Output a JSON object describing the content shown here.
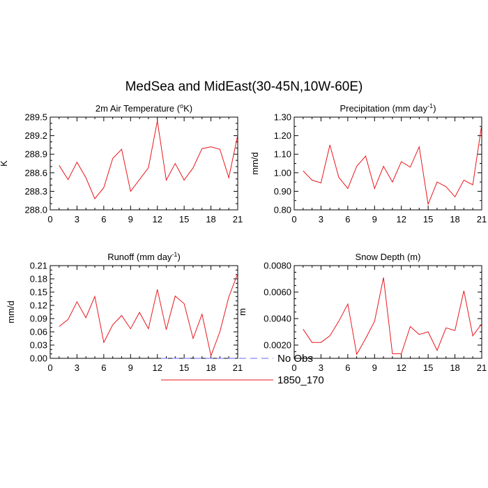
{
  "figure": {
    "title": "MedSea and MidEast(30-45N,10W-60E)"
  },
  "legend": {
    "items": [
      {
        "label": "No Obs",
        "color": "#6666ff",
        "dashed": true
      },
      {
        "label": "1850_170",
        "color": "#e8161b",
        "dashed": false
      }
    ]
  },
  "chart_data": [
    {
      "type": "line",
      "title": "2m Air Temperature (",
      "title_sup": "o",
      "title_end": "K)",
      "ylabel": "K",
      "xlim": [
        0,
        21
      ],
      "ylim": [
        288.0,
        289.5
      ],
      "xticks": [
        0,
        3,
        6,
        9,
        12,
        15,
        18,
        21
      ],
      "xticklabels": [
        "0",
        "3",
        "6",
        "9",
        "12",
        "15",
        "18",
        "21"
      ],
      "yticks": [
        288.0,
        288.3,
        288.6,
        288.9,
        289.2,
        289.5
      ],
      "yticklabels": [
        "288.0",
        "288.3",
        "288.6",
        "288.9",
        "289.2",
        "289.5"
      ],
      "yminor": 0.1,
      "x": [
        1,
        2,
        3,
        4,
        5,
        6,
        7,
        8,
        9,
        10,
        11,
        12,
        13,
        14,
        15,
        16,
        17,
        18,
        19,
        20,
        21
      ],
      "series": [
        {
          "name": "1850_170",
          "color": "#e8161b",
          "values": [
            288.72,
            288.49,
            288.77,
            288.52,
            288.18,
            288.36,
            288.83,
            288.98,
            288.3,
            288.49,
            288.68,
            289.44,
            288.48,
            288.75,
            288.48,
            288.68,
            288.99,
            289.02,
            288.98,
            288.52,
            289.21
          ]
        }
      ]
    },
    {
      "type": "line",
      "title": "Precipitation (mm day",
      "title_sup": "-1",
      "title_end": ")",
      "ylabel": "mm/d",
      "xlim": [
        0,
        21
      ],
      "ylim": [
        0.8,
        1.3
      ],
      "xticks": [
        0,
        3,
        6,
        9,
        12,
        15,
        18,
        21
      ],
      "xticklabels": [
        "0",
        "3",
        "6",
        "9",
        "12",
        "15",
        "18",
        "21"
      ],
      "yticks": [
        0.8,
        0.9,
        1.0,
        1.1,
        1.2,
        1.3
      ],
      "yticklabels": [
        "0.80",
        "0.90",
        "1.00",
        "1.10",
        "1.20",
        "1.30"
      ],
      "yminor": 0.05,
      "x": [
        1,
        2,
        3,
        4,
        5,
        6,
        7,
        8,
        9,
        10,
        11,
        12,
        13,
        14,
        15,
        16,
        17,
        18,
        19,
        20,
        21
      ],
      "series": [
        {
          "name": "1850_170",
          "color": "#e8161b",
          "values": [
            1.01,
            0.96,
            0.945,
            1.15,
            0.975,
            0.915,
            1.035,
            1.09,
            0.915,
            1.035,
            0.95,
            1.06,
            1.03,
            1.14,
            0.83,
            0.95,
            0.925,
            0.87,
            0.96,
            0.935,
            1.26
          ]
        }
      ]
    },
    {
      "type": "line",
      "title": "Runoff (mm day",
      "title_sup": "-1",
      "title_end": ")",
      "ylabel": "mm/d",
      "xlim": [
        0,
        21
      ],
      "ylim": [
        0.0,
        0.21
      ],
      "xticks": [
        0,
        3,
        6,
        9,
        12,
        15,
        18,
        21
      ],
      "xticklabels": [
        "0",
        "3",
        "6",
        "9",
        "12",
        "15",
        "18",
        "21"
      ],
      "yticks": [
        0.0,
        0.03,
        0.06,
        0.09,
        0.12,
        0.15,
        0.18,
        0.21
      ],
      "yticklabels": [
        "0.00",
        "0.03",
        "0.06",
        "0.09",
        "0.12",
        "0.15",
        "0.18",
        "0.21"
      ],
      "yminor": 0.01,
      "x": [
        1,
        2,
        3,
        4,
        5,
        6,
        7,
        8,
        9,
        10,
        11,
        12,
        13,
        14,
        15,
        16,
        17,
        18,
        19,
        20,
        21
      ],
      "series": [
        {
          "name": "1850_170",
          "color": "#e8161b",
          "values": [
            0.072,
            0.088,
            0.128,
            0.092,
            0.14,
            0.036,
            0.076,
            0.097,
            0.067,
            0.104,
            0.067,
            0.156,
            0.065,
            0.141,
            0.124,
            0.045,
            0.1,
            0.006,
            0.06,
            0.139,
            0.192
          ]
        }
      ]
    },
    {
      "type": "line",
      "title": "Snow Depth (m)",
      "title_sup": "",
      "title_end": "",
      "ylabel": "m",
      "xlim": [
        0,
        21
      ],
      "ylim": [
        0.001,
        0.008
      ],
      "xticks": [
        0,
        3,
        6,
        9,
        12,
        15,
        18,
        21
      ],
      "xticklabels": [
        "0",
        "3",
        "6",
        "9",
        "12",
        "15",
        "18",
        "21"
      ],
      "yticks": [
        0.002,
        0.004,
        0.006,
        0.008
      ],
      "yticklabels": [
        "0.0020",
        "0.0040",
        "0.0060",
        "0.0080"
      ],
      "yminor": 0.0005,
      "x": [
        1,
        2,
        3,
        4,
        5,
        6,
        7,
        8,
        9,
        10,
        11,
        12,
        13,
        14,
        15,
        16,
        17,
        18,
        19,
        20,
        21
      ],
      "series": [
        {
          "name": "1850_170",
          "color": "#e8161b",
          "values": [
            0.0032,
            0.0022,
            0.0022,
            0.0027,
            0.0038,
            0.0051,
            0.0013,
            0.0025,
            0.0038,
            0.0071,
            0.00135,
            0.00135,
            0.0034,
            0.0028,
            0.003,
            0.0016,
            0.0033,
            0.0031,
            0.0061,
            0.0027,
            0.0036
          ]
        }
      ]
    }
  ]
}
